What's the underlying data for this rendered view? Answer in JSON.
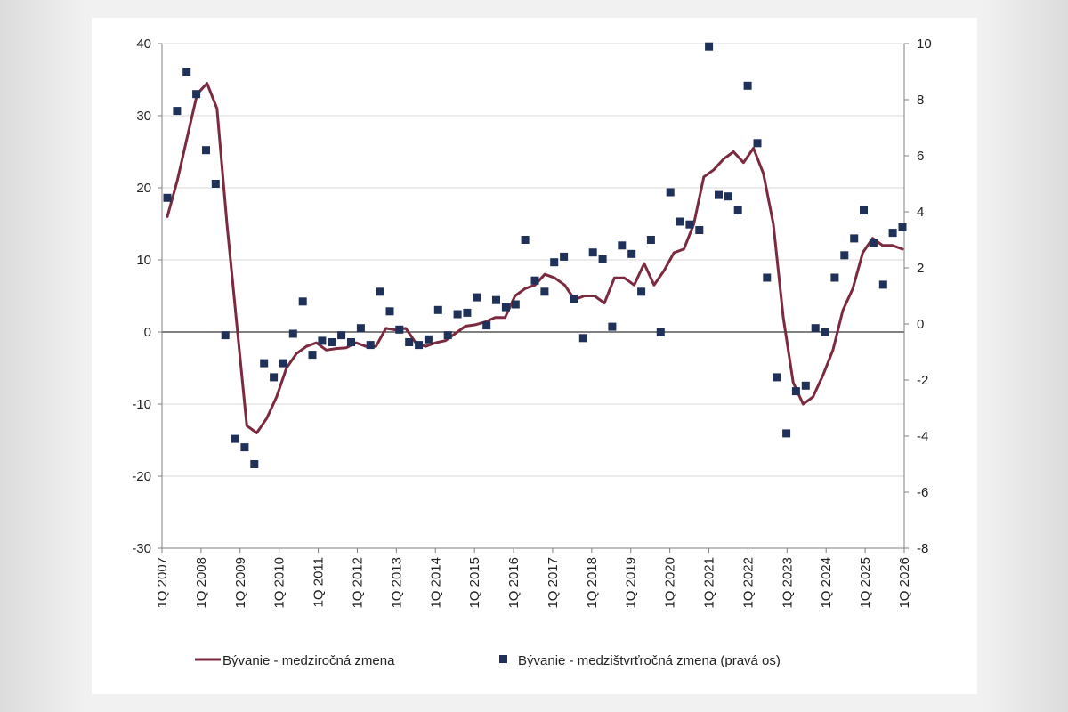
{
  "chart_data": {
    "type": "line",
    "title": "",
    "left_axis": {
      "min": -30,
      "max": 40,
      "ticks": [
        -30,
        -20,
        -10,
        0,
        10,
        20,
        30,
        40
      ]
    },
    "right_axis": {
      "min": -8,
      "max": 10,
      "ticks": [
        -8,
        -6,
        -4,
        -2,
        0,
        2,
        4,
        6,
        8,
        10
      ]
    },
    "x_tick_labels": [
      "1Q 2007",
      "1Q 2008",
      "1Q 2009",
      "1Q 2010",
      "1Q 2011",
      "1Q 2012",
      "1Q 2013",
      "1Q 2014",
      "1Q 2015",
      "1Q 2016",
      "1Q 2017",
      "1Q 2018",
      "1Q 2019",
      "1Q 2020",
      "1Q 2021",
      "1Q 2022",
      "1Q 2023",
      "1Q 2024",
      "1Q 2025",
      "1Q 2026"
    ],
    "horizontal_gridlines": true,
    "legend_position": "bottom",
    "colors": {
      "line": "#7b2a3f",
      "markers": "#1f3158",
      "axis": "#000000",
      "grid": "#d9d9d9"
    },
    "series": [
      {
        "name": "Bývanie - medziročná zmena",
        "axis": "left",
        "type": "line",
        "values": [
          16,
          21,
          27,
          33,
          34.5,
          31,
          15,
          1,
          -13,
          -14,
          -12,
          -9,
          -5,
          -3,
          -2,
          -1.5,
          -2.5,
          -2.3,
          -2.2,
          -1.5,
          -2,
          -2,
          0.5,
          0.3,
          0.5,
          -1.5,
          -2,
          -1.5,
          -1.2,
          -0.2,
          0.8,
          1,
          1.4,
          2,
          2,
          5,
          6,
          6.5,
          8,
          7.5,
          6.5,
          4.5,
          5,
          5,
          4,
          7.5,
          7.5,
          6.5,
          9.5,
          6.5,
          8.5,
          11,
          11.5,
          15,
          21.5,
          22.5,
          24,
          25,
          23.5,
          25.5,
          22,
          15,
          2,
          -7,
          -10,
          -9,
          -6,
          -2.5,
          3,
          6,
          11,
          13,
          12,
          12,
          11.5
        ]
      },
      {
        "name": "Bývanie - medzištvrťročná zmena (pravá os)",
        "axis": "right",
        "type": "scatter",
        "values": [
          4.5,
          7.6,
          9,
          8.2,
          6.2,
          5,
          -0.4,
          -4.1,
          -4.4,
          -5,
          -1.4,
          -1.9,
          -1.4,
          -0.35,
          0.8,
          -1.1,
          -0.6,
          -0.65,
          -0.4,
          -0.65,
          -0.15,
          -0.75,
          1.15,
          0.45,
          -0.2,
          -0.65,
          -0.75,
          -0.55,
          0.5,
          -0.4,
          0.35,
          0.4,
          0.95,
          -0.05,
          0.85,
          0.6,
          0.7,
          3,
          1.55,
          1.15,
          2.2,
          2.4,
          0.9,
          -0.5,
          2.55,
          2.3,
          -0.1,
          2.8,
          2.5,
          1.15,
          3,
          -0.3,
          4.7,
          3.65,
          3.55,
          3.35,
          9.9,
          4.6,
          4.55,
          4.05,
          8.5,
          6.45,
          1.65,
          -1.9,
          -3.9,
          -2.4,
          -2.2,
          -0.15,
          -0.3,
          1.65,
          2.45,
          3.05,
          4.05,
          2.9,
          1.4,
          3.25,
          3.45
        ]
      }
    ]
  }
}
